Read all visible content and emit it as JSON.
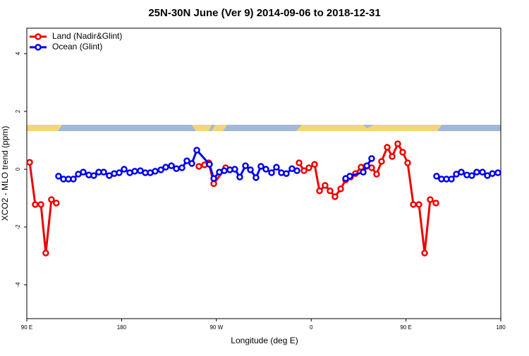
{
  "chart_data": {
    "type": "line",
    "title": "25N-30N June (Ver 9)   2014-09-06 to 2018-12-31",
    "x_label": "Longitude (deg E)",
    "y_label": "XCO2 - MLO trend (ppm)",
    "xlim": [
      90,
      540
    ],
    "xticks": [
      {
        "value": 90,
        "label": "90 E"
      },
      180,
      {
        "value": 270,
        "label": "90 W"
      },
      {
        "value": 360,
        "label": "0"
      },
      {
        "value": 450,
        "label": "90 E"
      },
      {
        "value": 540,
        "label": "180"
      }
    ],
    "ylim": [
      -5.17,
      4.88
    ],
    "yticks": [
      -4,
      -2,
      0,
      2,
      4
    ],
    "legend": "topleft",
    "series": [
      {
        "name": "Land (Nadir&Glint)",
        "color": "#ee0000",
        "x": [
          92.7,
          98,
          103.4,
          108,
          113.4,
          118,
          null,
          253.4,
          258.7,
          262.8,
          267.5,
          278.8,
          null,
          348.5,
          353.2,
          357.8,
          363.2,
          367.9,
          373.2,
          377.9,
          382.6,
          388,
          392.7,
          397.3,
          402,
          407.4,
          412.1,
          417.4,
          422.1,
          426.8,
          432.2,
          436.9,
          442.2,
          446.9,
          451.6,
          457,
          462.3,
          467.7,
          473,
          478.4
        ],
        "values": [
          0.24,
          -1.22,
          -1.22,
          -2.9,
          -1.05,
          -1.17,
          null,
          0.1,
          0.15,
          0.22,
          -0.5,
          0.05,
          null,
          0.22,
          -0.05,
          0.05,
          0.17,
          -0.75,
          -0.56,
          -0.75,
          -0.95,
          -0.68,
          -0.37,
          -0.27,
          -0.15,
          0.07,
          0.1,
          0.05,
          -0.17,
          0.27,
          0.76,
          0.44,
          0.88,
          0.59,
          0.22,
          -1.22,
          -1.22,
          -2.9,
          -1.05,
          -1.17
        ]
      },
      {
        "name": "Ocean (Glint)",
        "color": "#0000ee",
        "x": [
          120.1,
          124.8,
          129.5,
          134.2,
          138.9,
          143.6,
          148.9,
          153.6,
          158.3,
          163,
          168.3,
          173,
          177.7,
          182.4,
          187.8,
          192.5,
          197.8,
          202.5,
          207.2,
          211.9,
          217.3,
          221.9,
          227.3,
          232,
          237.3,
          242,
          246.7,
          251.4,
          263.4,
          267.5,
          272.8,
          277.5,
          282.8,
          287.5,
          292.2,
          297.6,
          302.3,
          307.6,
          312.3,
          317,
          322.4,
          327,
          331.7,
          336.4,
          341.8,
          346.5,
          null,
          392.7,
          396.7,
          409.4,
          412.8,
          417.4,
          null,
          479,
          483.7,
          488.4,
          493.1,
          497.8,
          502.5,
          507.8,
          512.5,
          517.2,
          522.6,
          527.3,
          532,
          537.3
        ],
        "values": [
          -0.24,
          -0.34,
          -0.34,
          -0.34,
          -0.17,
          -0.1,
          -0.2,
          -0.22,
          -0.1,
          -0.1,
          -0.22,
          -0.15,
          -0.12,
          0,
          -0.12,
          -0.07,
          -0.05,
          -0.12,
          -0.12,
          -0.07,
          -0.02,
          0.07,
          0.12,
          0.02,
          0.05,
          0.29,
          0.2,
          0.66,
          0.17,
          -0.32,
          -0.1,
          -0.05,
          -0.02,
          0,
          -0.27,
          0.12,
          -0.02,
          -0.29,
          0.1,
          0,
          -0.12,
          0.07,
          -0.12,
          -0.15,
          0.02,
          -0.05,
          null,
          -0.32,
          -0.24,
          -0.1,
          0.12,
          0.37,
          null,
          -0.24,
          -0.34,
          -0.34,
          -0.34,
          -0.17,
          -0.1,
          -0.2,
          -0.22,
          -0.1,
          -0.1,
          -0.22,
          -0.15,
          -0.12
        ]
      }
    ]
  }
}
